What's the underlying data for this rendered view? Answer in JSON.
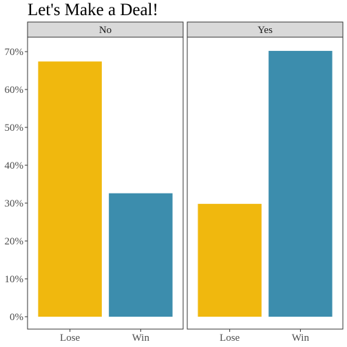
{
  "chart_data": {
    "type": "bar",
    "title": "Let's Make a Deal!",
    "xlabel": "",
    "ylabel": "",
    "ylim": [
      0,
      0.73
    ],
    "y_ticks": [
      "0%",
      "10%",
      "20%",
      "30%",
      "40%",
      "50%",
      "60%",
      "70%"
    ],
    "y_tick_values": [
      0,
      0.1,
      0.2,
      0.3,
      0.4,
      0.5,
      0.6,
      0.7
    ],
    "grid": false,
    "categories": [
      "Lose",
      "Win"
    ],
    "bar_colors": {
      "Lose": "#F0B80E",
      "Win": "#3C8DAD"
    },
    "facets": [
      {
        "label": "No",
        "values": [
          0.674,
          0.326
        ]
      },
      {
        "label": "Yes",
        "values": [
          0.298,
          0.702
        ]
      }
    ]
  }
}
